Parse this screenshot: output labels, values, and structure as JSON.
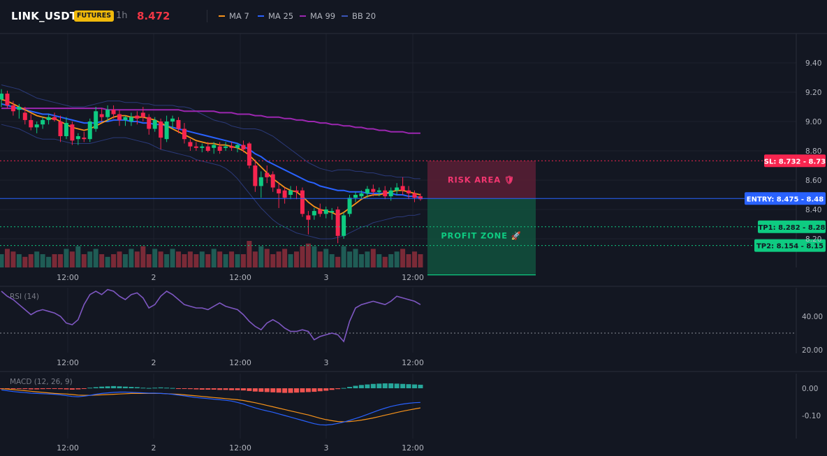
{
  "header": {
    "symbol": "LINK_USDT",
    "badge": "FUTURES",
    "timeframe": "1h",
    "last_price": "8.472",
    "indicators": [
      {
        "label": "MA 7",
        "color": "#f7931a"
      },
      {
        "label": "MA 25",
        "color": "#2962ff"
      },
      {
        "label": "MA 99",
        "color": "#9c27b0"
      },
      {
        "label": "BB 20",
        "color": "#2b3a7a"
      }
    ]
  },
  "colors": {
    "up": "#26a69a",
    "up_bright": "#0ecb81",
    "down": "#f23645",
    "grid": "#1e222d",
    "text": "#b2b5be"
  },
  "chart_data": [
    {
      "type": "candlestick",
      "y_ticks": [
        "9.40",
        "9.20",
        "9.00",
        "8.80",
        "8.60",
        "8.40",
        "8.20"
      ],
      "y_range": [
        8.05,
        9.55
      ],
      "x_tick_labels": [
        "12:00",
        "2",
        "12:00",
        "3",
        "12:00"
      ],
      "candles": [
        {
          "o": 9.15,
          "h": 9.22,
          "l": 9.1,
          "c": 9.19
        },
        {
          "o": 9.19,
          "h": 9.21,
          "l": 9.09,
          "c": 9.11
        },
        {
          "o": 9.11,
          "h": 9.14,
          "l": 9.04,
          "c": 9.07
        },
        {
          "o": 9.08,
          "h": 9.12,
          "l": 9.02,
          "c": 9.1
        },
        {
          "o": 9.06,
          "h": 9.1,
          "l": 8.98,
          "c": 9.01
        },
        {
          "o": 9.01,
          "h": 9.05,
          "l": 8.94,
          "c": 8.96
        },
        {
          "o": 8.96,
          "h": 9.0,
          "l": 8.92,
          "c": 8.98
        },
        {
          "o": 8.98,
          "h": 9.03,
          "l": 8.95,
          "c": 9.01
        },
        {
          "o": 9.01,
          "h": 9.05,
          "l": 8.98,
          "c": 9.03
        },
        {
          "o": 9.03,
          "h": 9.06,
          "l": 9.0,
          "c": 9.01
        },
        {
          "o": 9.0,
          "h": 9.04,
          "l": 8.86,
          "c": 8.9
        },
        {
          "o": 8.9,
          "h": 9.03,
          "l": 8.88,
          "c": 8.99
        },
        {
          "o": 8.98,
          "h": 9.0,
          "l": 8.84,
          "c": 8.87
        },
        {
          "o": 8.88,
          "h": 8.92,
          "l": 8.84,
          "c": 8.9
        },
        {
          "o": 8.89,
          "h": 8.93,
          "l": 8.86,
          "c": 8.88
        },
        {
          "o": 8.88,
          "h": 9.02,
          "l": 8.86,
          "c": 9.0
        },
        {
          "o": 8.95,
          "h": 9.1,
          "l": 8.93,
          "c": 9.07
        },
        {
          "o": 9.05,
          "h": 9.09,
          "l": 9.0,
          "c": 9.03
        },
        {
          "o": 9.03,
          "h": 9.11,
          "l": 9.0,
          "c": 9.08
        },
        {
          "o": 9.08,
          "h": 9.11,
          "l": 9.02,
          "c": 9.05
        },
        {
          "o": 9.05,
          "h": 9.08,
          "l": 8.97,
          "c": 9.01
        },
        {
          "o": 9.01,
          "h": 9.04,
          "l": 8.97,
          "c": 9.03
        },
        {
          "o": 9.0,
          "h": 9.06,
          "l": 8.97,
          "c": 9.03
        },
        {
          "o": 9.04,
          "h": 9.07,
          "l": 8.98,
          "c": 9.02
        },
        {
          "o": 9.06,
          "h": 9.1,
          "l": 9.0,
          "c": 9.03
        },
        {
          "o": 9.03,
          "h": 9.05,
          "l": 8.91,
          "c": 8.95
        },
        {
          "o": 8.95,
          "h": 9.03,
          "l": 8.93,
          "c": 9.01
        },
        {
          "o": 9.0,
          "h": 9.02,
          "l": 8.81,
          "c": 8.89
        },
        {
          "o": 8.88,
          "h": 9.04,
          "l": 8.86,
          "c": 9.0
        },
        {
          "o": 9.0,
          "h": 9.04,
          "l": 8.95,
          "c": 9.02
        },
        {
          "o": 9.01,
          "h": 9.03,
          "l": 8.92,
          "c": 8.95
        },
        {
          "o": 8.95,
          "h": 8.99,
          "l": 8.85,
          "c": 8.88
        },
        {
          "o": 8.86,
          "h": 8.88,
          "l": 8.8,
          "c": 8.83
        },
        {
          "o": 8.83,
          "h": 8.86,
          "l": 8.8,
          "c": 8.82
        },
        {
          "o": 8.82,
          "h": 8.85,
          "l": 8.79,
          "c": 8.83
        },
        {
          "o": 8.83,
          "h": 8.86,
          "l": 8.79,
          "c": 8.8
        },
        {
          "o": 8.82,
          "h": 8.86,
          "l": 8.78,
          "c": 8.84
        },
        {
          "o": 8.83,
          "h": 8.86,
          "l": 8.78,
          "c": 8.8
        },
        {
          "o": 8.82,
          "h": 8.86,
          "l": 8.8,
          "c": 8.83
        },
        {
          "o": 8.83,
          "h": 8.86,
          "l": 8.8,
          "c": 8.82
        },
        {
          "o": 8.82,
          "h": 8.85,
          "l": 8.79,
          "c": 8.84
        },
        {
          "o": 8.84,
          "h": 8.87,
          "l": 8.79,
          "c": 8.81
        },
        {
          "o": 8.85,
          "h": 8.86,
          "l": 8.68,
          "c": 8.7
        },
        {
          "o": 8.7,
          "h": 8.74,
          "l": 8.52,
          "c": 8.56
        },
        {
          "o": 8.56,
          "h": 8.66,
          "l": 8.48,
          "c": 8.62
        },
        {
          "o": 8.65,
          "h": 8.7,
          "l": 8.58,
          "c": 8.62
        },
        {
          "o": 8.64,
          "h": 8.66,
          "l": 8.52,
          "c": 8.55
        },
        {
          "o": 8.54,
          "h": 8.58,
          "l": 8.41,
          "c": 8.51
        },
        {
          "o": 8.53,
          "h": 8.55,
          "l": 8.44,
          "c": 8.48
        },
        {
          "o": 8.5,
          "h": 8.56,
          "l": 8.47,
          "c": 8.53
        },
        {
          "o": 8.53,
          "h": 8.56,
          "l": 8.47,
          "c": 8.52
        },
        {
          "o": 8.53,
          "h": 8.55,
          "l": 8.35,
          "c": 8.37
        },
        {
          "o": 8.36,
          "h": 8.39,
          "l": 8.23,
          "c": 8.33
        },
        {
          "o": 8.36,
          "h": 8.41,
          "l": 8.33,
          "c": 8.39
        },
        {
          "o": 8.4,
          "h": 8.44,
          "l": 8.35,
          "c": 8.37
        },
        {
          "o": 8.37,
          "h": 8.42,
          "l": 8.34,
          "c": 8.4
        },
        {
          "o": 8.38,
          "h": 8.41,
          "l": 8.33,
          "c": 8.39
        },
        {
          "o": 8.4,
          "h": 8.42,
          "l": 8.17,
          "c": 8.22
        },
        {
          "o": 8.22,
          "h": 8.38,
          "l": 8.2,
          "c": 8.36
        },
        {
          "o": 8.37,
          "h": 8.5,
          "l": 8.35,
          "c": 8.48
        },
        {
          "o": 8.48,
          "h": 8.52,
          "l": 8.45,
          "c": 8.5
        },
        {
          "o": 8.49,
          "h": 8.53,
          "l": 8.47,
          "c": 8.51
        },
        {
          "o": 8.51,
          "h": 8.56,
          "l": 8.48,
          "c": 8.54
        },
        {
          "o": 8.54,
          "h": 8.57,
          "l": 8.49,
          "c": 8.52
        },
        {
          "o": 8.52,
          "h": 8.55,
          "l": 8.49,
          "c": 8.53
        },
        {
          "o": 8.53,
          "h": 8.56,
          "l": 8.47,
          "c": 8.49
        },
        {
          "o": 8.49,
          "h": 8.55,
          "l": 8.46,
          "c": 8.53
        },
        {
          "o": 8.53,
          "h": 8.58,
          "l": 8.5,
          "c": 8.55
        },
        {
          "o": 8.56,
          "h": 8.62,
          "l": 8.5,
          "c": 8.53
        },
        {
          "o": 8.53,
          "h": 8.56,
          "l": 8.47,
          "c": 8.51
        },
        {
          "o": 8.51,
          "h": 8.53,
          "l": 8.45,
          "c": 8.48
        },
        {
          "o": 8.49,
          "h": 8.51,
          "l": 8.46,
          "c": 8.47
        }
      ],
      "ma7": [
        9.15,
        9.14,
        9.12,
        9.1,
        9.08,
        9.06,
        9.04,
        9.03,
        9.02,
        9.02,
        9.0,
        8.98,
        8.96,
        8.95,
        8.94,
        8.95,
        8.97,
        8.99,
        9.01,
        9.03,
        9.04,
        9.04,
        9.03,
        9.03,
        9.03,
        9.02,
        9.01,
        8.99,
        8.97,
        8.95,
        8.93,
        8.91,
        8.89,
        8.87,
        8.86,
        8.85,
        8.85,
        8.84,
        8.84,
        8.83,
        8.82,
        8.8,
        8.77,
        8.73,
        8.69,
        8.65,
        8.61,
        8.58,
        8.55,
        8.53,
        8.52,
        8.49,
        8.45,
        8.42,
        8.4,
        8.39,
        8.38,
        8.36,
        8.38,
        8.41,
        8.44,
        8.47,
        8.49,
        8.5,
        8.5,
        8.51,
        8.52,
        8.53,
        8.53,
        8.52,
        8.51,
        8.5
      ],
      "ma25": [
        9.12,
        9.11,
        9.1,
        9.09,
        9.08,
        9.07,
        9.06,
        9.05,
        9.05,
        9.04,
        9.03,
        9.02,
        9.01,
        9.0,
        8.99,
        8.99,
        8.99,
        9.0,
        9.0,
        9.01,
        9.01,
        9.01,
        9.0,
        9.0,
        8.99,
        8.99,
        8.98,
        8.98,
        8.97,
        8.96,
        8.95,
        8.94,
        8.93,
        8.92,
        8.91,
        8.9,
        8.89,
        8.88,
        8.87,
        8.86,
        8.85,
        8.83,
        8.81,
        8.78,
        8.76,
        8.73,
        8.71,
        8.69,
        8.67,
        8.65,
        8.63,
        8.61,
        8.59,
        8.58,
        8.56,
        8.55,
        8.54,
        8.53,
        8.53,
        8.52,
        8.52,
        8.52,
        8.51,
        8.51,
        8.51,
        8.51,
        8.51,
        8.5,
        8.5,
        8.49,
        8.49,
        8.48
      ],
      "ma99": [
        9.09,
        9.09,
        9.09,
        9.09,
        9.09,
        9.09,
        9.09,
        9.09,
        9.09,
        9.09,
        9.09,
        9.09,
        9.09,
        9.09,
        9.09,
        9.09,
        9.09,
        9.09,
        9.08,
        9.08,
        9.08,
        9.08,
        9.08,
        9.08,
        9.08,
        9.08,
        9.08,
        9.08,
        9.08,
        9.08,
        9.08,
        9.07,
        9.07,
        9.07,
        9.07,
        9.07,
        9.07,
        9.06,
        9.06,
        9.06,
        9.05,
        9.05,
        9.05,
        9.04,
        9.04,
        9.03,
        9.03,
        9.03,
        9.02,
        9.02,
        9.01,
        9.01,
        9.0,
        9.0,
        8.99,
        8.99,
        8.98,
        8.98,
        8.97,
        8.97,
        8.96,
        8.96,
        8.95,
        8.95,
        8.94,
        8.94,
        8.93,
        8.93,
        8.93,
        8.92,
        8.92,
        8.92
      ],
      "bb_upper": [
        9.25,
        9.24,
        9.23,
        9.22,
        9.2,
        9.18,
        9.16,
        9.15,
        9.14,
        9.13,
        9.12,
        9.11,
        9.1,
        9.1,
        9.1,
        9.11,
        9.12,
        9.13,
        9.14,
        9.14,
        9.14,
        9.13,
        9.13,
        9.13,
        9.12,
        9.12,
        9.11,
        9.11,
        9.11,
        9.11,
        9.1,
        9.1,
        9.09,
        9.07,
        9.05,
        9.03,
        9.01,
        9.0,
        8.99,
        8.97,
        8.96,
        8.95,
        8.95,
        8.95,
        8.94,
        8.92,
        8.9,
        8.87,
        8.84,
        8.81,
        8.78,
        8.75,
        8.72,
        8.7,
        8.68,
        8.67,
        8.66,
        8.67,
        8.67,
        8.67,
        8.66,
        8.66,
        8.65,
        8.65,
        8.64,
        8.63,
        8.63,
        8.62,
        8.62,
        8.62,
        8.61,
        8.61
      ],
      "bb_lower": [
        8.98,
        8.97,
        8.96,
        8.95,
        8.93,
        8.91,
        8.89,
        8.88,
        8.88,
        8.88,
        8.87,
        8.86,
        8.85,
        8.85,
        8.85,
        8.85,
        8.86,
        8.87,
        8.88,
        8.89,
        8.89,
        8.89,
        8.88,
        8.87,
        8.86,
        8.85,
        8.83,
        8.81,
        8.8,
        8.79,
        8.78,
        8.77,
        8.76,
        8.74,
        8.73,
        8.72,
        8.71,
        8.7,
        8.68,
        8.65,
        8.61,
        8.56,
        8.51,
        8.46,
        8.41,
        8.37,
        8.33,
        8.3,
        8.28,
        8.26,
        8.24,
        8.23,
        8.22,
        8.21,
        8.2,
        8.2,
        8.2,
        8.21,
        8.22,
        8.24,
        8.26,
        8.28,
        8.29,
        8.31,
        8.32,
        8.33,
        8.34,
        8.35,
        8.35,
        8.36,
        8.36,
        8.37
      ],
      "volume": [
        0.5,
        0.7,
        0.6,
        0.5,
        0.4,
        0.5,
        0.6,
        0.5,
        0.4,
        0.5,
        0.5,
        0.7,
        0.6,
        0.8,
        0.5,
        0.6,
        0.7,
        0.5,
        0.4,
        0.5,
        0.6,
        0.5,
        0.7,
        0.6,
        0.8,
        0.5,
        0.7,
        0.6,
        0.5,
        0.7,
        0.6,
        0.5,
        0.6,
        0.5,
        0.6,
        0.5,
        0.7,
        0.6,
        0.5,
        0.6,
        0.5,
        0.5,
        1.0,
        0.6,
        0.8,
        0.7,
        0.5,
        0.6,
        0.7,
        0.5,
        0.6,
        0.8,
        0.9,
        0.8,
        0.6,
        0.7,
        0.5,
        0.4,
        0.8,
        0.6,
        0.7,
        0.5,
        0.6,
        0.7,
        0.5,
        0.4,
        0.5,
        0.6,
        0.7,
        0.5,
        0.6,
        0.5
      ],
      "annotations": {
        "sl": {
          "label": "SL: 8.732 - 8.73",
          "value": 8.732
        },
        "entry": {
          "label": "ENTRY: 8.475 - 8.48",
          "value": 8.475
        },
        "tp1": {
          "label": "TP1: 8.282 - 8.28",
          "value": 8.282
        },
        "tp2": {
          "label": "TP2: 8.154 - 8.15",
          "value": 8.154
        },
        "risk_label": "RISK AREA 🛡",
        "profit_label": "PROFIT ZONE 🚀"
      }
    },
    {
      "type": "line",
      "title": "RSI (14)",
      "y_ticks": [
        "40.00",
        "20.00"
      ],
      "y_range": [
        15,
        62
      ],
      "reference_line": 30,
      "values": [
        55,
        52,
        50,
        47,
        44,
        41,
        43,
        44,
        43,
        42,
        40,
        36,
        35,
        38,
        47,
        53,
        55,
        53,
        56,
        55,
        52,
        50,
        53,
        54,
        51,
        45,
        47,
        52,
        55,
        53,
        50,
        47,
        46,
        45,
        45,
        44,
        46,
        48,
        46,
        45,
        44,
        41,
        37,
        34,
        32,
        36,
        38,
        36,
        33,
        31,
        31,
        32,
        31,
        26,
        28,
        29,
        30,
        29,
        25,
        37,
        45,
        47,
        48,
        49,
        48,
        47,
        49,
        52,
        51,
        50,
        49,
        47
      ],
      "x_tick_labels": [
        "12:00",
        "2",
        "12:00",
        "3",
        "12:00"
      ]
    },
    {
      "type": "macd",
      "title": "MACD (12, 26, 9)",
      "y_ticks": [
        "0.00",
        "-0.10"
      ],
      "y_range": [
        -0.18,
        0.045
      ],
      "histogram": [
        -0.003,
        -0.002,
        -0.001,
        -0.002,
        -0.003,
        -0.004,
        -0.004,
        -0.003,
        -0.002,
        -0.002,
        -0.003,
        -0.004,
        -0.005,
        -0.004,
        -0.002,
        0.002,
        0.004,
        0.006,
        0.007,
        0.008,
        0.007,
        0.006,
        0.005,
        0.004,
        0.002,
        0.001,
        0.002,
        0.003,
        0.002,
        0.001,
        -0.001,
        -0.002,
        -0.003,
        -0.004,
        -0.005,
        -0.005,
        -0.005,
        -0.006,
        -0.006,
        -0.007,
        -0.007,
        -0.008,
        -0.01,
        -0.012,
        -0.013,
        -0.014,
        -0.015,
        -0.016,
        -0.017,
        -0.017,
        -0.016,
        -0.015,
        -0.014,
        -0.013,
        -0.011,
        -0.009,
        -0.006,
        -0.003,
        0.001,
        0.005,
        0.009,
        0.012,
        0.014,
        0.016,
        0.017,
        0.018,
        0.018,
        0.017,
        0.016,
        0.015,
        0.014,
        0.013
      ],
      "macd": [
        -0.006,
        -0.009,
        -0.012,
        -0.014,
        -0.016,
        -0.018,
        -0.019,
        -0.02,
        -0.021,
        -0.022,
        -0.024,
        -0.027,
        -0.03,
        -0.031,
        -0.029,
        -0.026,
        -0.022,
        -0.019,
        -0.017,
        -0.015,
        -0.014,
        -0.014,
        -0.015,
        -0.016,
        -0.017,
        -0.018,
        -0.018,
        -0.019,
        -0.02,
        -0.022,
        -0.025,
        -0.028,
        -0.031,
        -0.034,
        -0.036,
        -0.038,
        -0.04,
        -0.042,
        -0.044,
        -0.047,
        -0.052,
        -0.058,
        -0.065,
        -0.072,
        -0.078,
        -0.083,
        -0.088,
        -0.094,
        -0.1,
        -0.106,
        -0.112,
        -0.118,
        -0.124,
        -0.13,
        -0.134,
        -0.135,
        -0.133,
        -0.129,
        -0.124,
        -0.118,
        -0.111,
        -0.104,
        -0.096,
        -0.088,
        -0.08,
        -0.073,
        -0.067,
        -0.062,
        -0.058,
        -0.055,
        -0.053,
        -0.052
      ],
      "signal": [
        -0.002,
        -0.003,
        -0.005,
        -0.007,
        -0.009,
        -0.011,
        -0.013,
        -0.015,
        -0.017,
        -0.019,
        -0.02,
        -0.021,
        -0.023,
        -0.025,
        -0.026,
        -0.026,
        -0.025,
        -0.024,
        -0.023,
        -0.022,
        -0.021,
        -0.02,
        -0.019,
        -0.019,
        -0.019,
        -0.019,
        -0.019,
        -0.019,
        -0.02,
        -0.021,
        -0.022,
        -0.024,
        -0.026,
        -0.028,
        -0.03,
        -0.032,
        -0.034,
        -0.036,
        -0.038,
        -0.04,
        -0.042,
        -0.045,
        -0.049,
        -0.053,
        -0.058,
        -0.063,
        -0.068,
        -0.073,
        -0.078,
        -0.083,
        -0.088,
        -0.093,
        -0.098,
        -0.104,
        -0.11,
        -0.115,
        -0.119,
        -0.122,
        -0.123,
        -0.122,
        -0.12,
        -0.117,
        -0.113,
        -0.109,
        -0.104,
        -0.099,
        -0.094,
        -0.089,
        -0.084,
        -0.08,
        -0.076,
        -0.072
      ],
      "x_tick_labels": [
        "12:00",
        "2",
        "12:00",
        "3",
        "12:00"
      ]
    }
  ]
}
